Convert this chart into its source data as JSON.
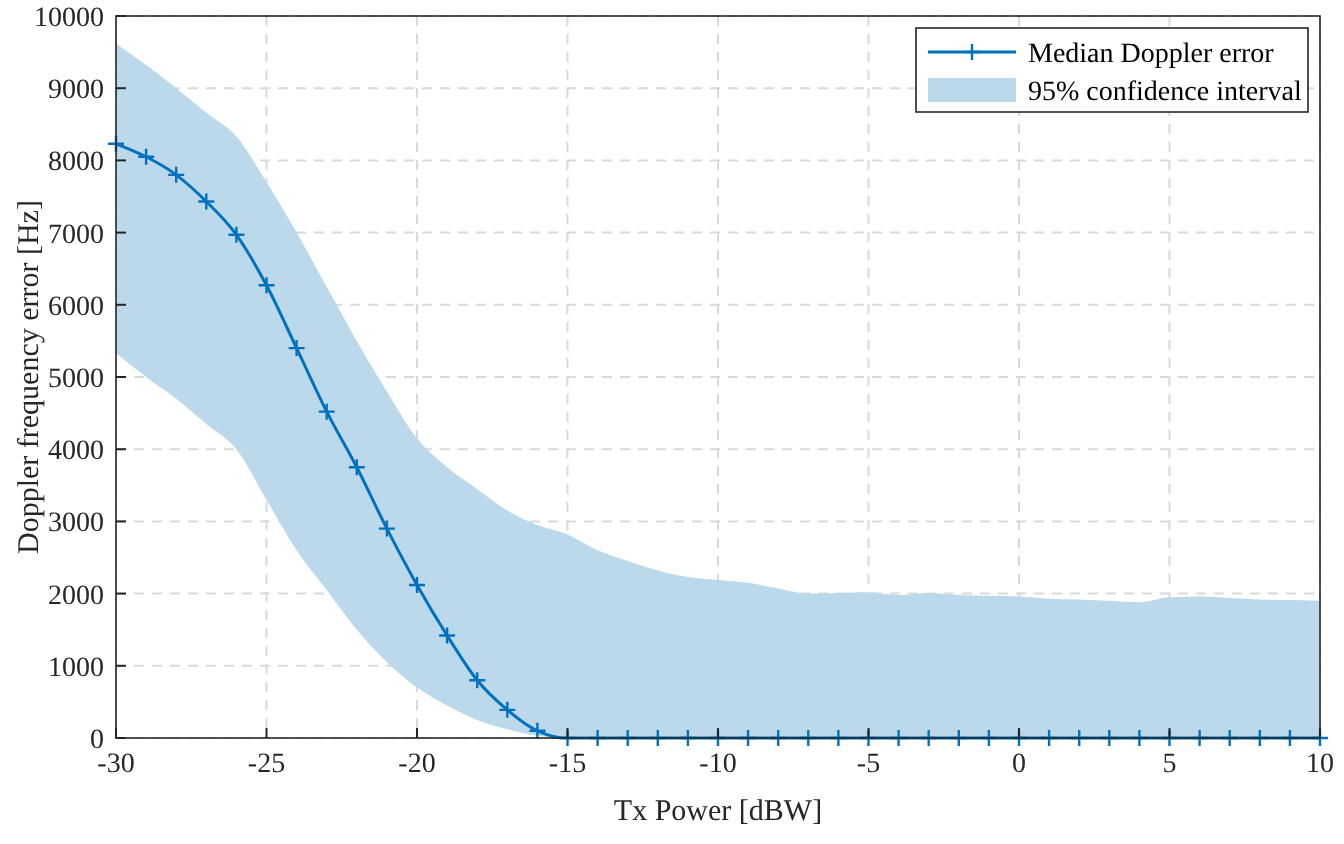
{
  "chart_data": {
    "type": "line",
    "xlabel": "Tx Power [dBW]",
    "ylabel": "Doppler frequency error [Hz]",
    "x": [
      -30,
      -29,
      -28,
      -27,
      -26,
      -25,
      -24,
      -23,
      -22,
      -21,
      -20,
      -19,
      -18,
      -17,
      -16,
      -15,
      -14,
      -13,
      -12,
      -11,
      -10,
      -9,
      -8,
      -7,
      -6,
      -5,
      -4,
      -3,
      -2,
      -1,
      0,
      1,
      2,
      3,
      4,
      5,
      6,
      7,
      8,
      9,
      10
    ],
    "series": [
      {
        "name": "Median Doppler error",
        "color": "#0072bd",
        "marker": "cross",
        "values": [
          8230,
          8050,
          7800,
          7430,
          6970,
          6270,
          5400,
          4520,
          3750,
          2900,
          2120,
          1420,
          800,
          390,
          100,
          0,
          0,
          0,
          0,
          0,
          0,
          0,
          0,
          0,
          0,
          0,
          0,
          0,
          0,
          0,
          0,
          0,
          0,
          0,
          0,
          0,
          0,
          0,
          0,
          0,
          0
        ],
        "lower": [
          5330,
          5000,
          4700,
          4350,
          4000,
          3300,
          2600,
          2050,
          1500,
          1050,
          700,
          450,
          250,
          120,
          30,
          0,
          0,
          0,
          0,
          0,
          0,
          0,
          0,
          0,
          0,
          0,
          0,
          0,
          0,
          0,
          0,
          0,
          0,
          0,
          0,
          0,
          0,
          0,
          0,
          0,
          0
        ],
        "upper": [
          9620,
          9320,
          9000,
          8660,
          8330,
          7700,
          7000,
          6250,
          5500,
          4800,
          4150,
          3750,
          3450,
          3150,
          2950,
          2820,
          2600,
          2450,
          2320,
          2230,
          2190,
          2150,
          2070,
          2000,
          2010,
          2020,
          1980,
          2010,
          1980,
          1970,
          1960,
          1930,
          1920,
          1900,
          1880,
          1950,
          1960,
          1940,
          1920,
          1910,
          1900
        ]
      },
      {
        "name": "95% confidence interval",
        "type": "area",
        "color": "#bcd9ec",
        "values": [
          null,
          null,
          null,
          null,
          null,
          null,
          null,
          null,
          null,
          null,
          null,
          null,
          null,
          null,
          null,
          null,
          null,
          null,
          null,
          null,
          null,
          null,
          null,
          null,
          null,
          null,
          null,
          null,
          null,
          null,
          null,
          null,
          null,
          null,
          null,
          null,
          null,
          null,
          null,
          null,
          null
        ]
      }
    ],
    "xlim": [
      -30,
      10
    ],
    "xticks": [
      -30,
      -25,
      -20,
      -15,
      -10,
      -5,
      0,
      5,
      10
    ],
    "ylim": [
      0,
      10000
    ],
    "yticks": [
      0,
      1000,
      2000,
      3000,
      4000,
      5000,
      6000,
      7000,
      8000,
      9000,
      10000
    ],
    "grid": true,
    "legend": "top right",
    "line_style": "solid"
  }
}
